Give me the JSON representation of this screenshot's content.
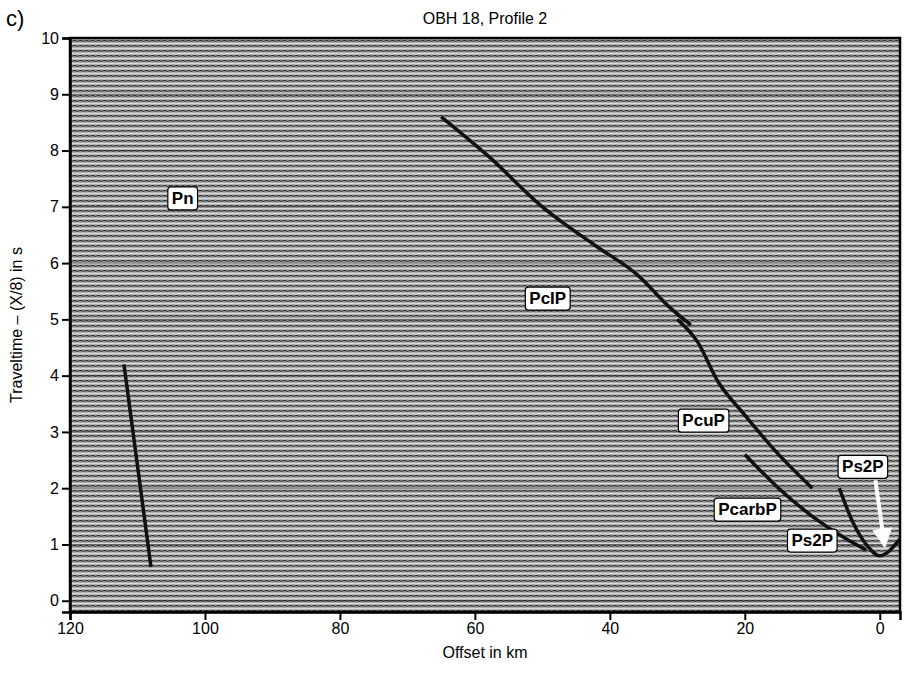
{
  "chart_data": {
    "type": "line",
    "panel": "c)",
    "title": "OBH 18, Profile 2",
    "x_label": "Offset in km",
    "y_label": "Traveltime – (X/8) in s",
    "xlim": [
      120,
      -3
    ],
    "ylim": [
      -0.2,
      10
    ],
    "xticks": [
      120,
      100,
      80,
      60,
      40,
      20,
      0
    ],
    "yticks": [
      0,
      1,
      2,
      3,
      4,
      5,
      6,
      7,
      8,
      9,
      10
    ],
    "grid": true,
    "series": [
      {
        "color": "#111111",
        "x": [
          6,
          4,
          2,
          0,
          -3
        ],
        "values": [
          2.0,
          1.4,
          1.0,
          0.8,
          1.1
        ]
      },
      {
        "color": "#111111",
        "x": [
          20,
          15,
          10,
          5,
          2
        ],
        "values": [
          2.6,
          2.0,
          1.5,
          1.1,
          0.9
        ]
      },
      {
        "color": "#111111",
        "x": [
          30,
          27,
          24,
          20,
          15,
          10
        ],
        "values": [
          5.0,
          4.6,
          3.9,
          3.3,
          2.6,
          2.0
        ]
      },
      {
        "color": "#111111",
        "x": [
          65,
          58,
          50,
          42,
          36,
          31,
          28
        ],
        "values": [
          8.6,
          7.9,
          7.0,
          6.3,
          5.8,
          5.2,
          4.9
        ]
      },
      {
        "color": "#111111",
        "x": [
          112,
          110,
          108
        ],
        "values": [
          4.2,
          2.4,
          0.6
        ]
      }
    ],
    "annotations": [
      {
        "text": "Pn",
        "x": 103.3,
        "y": 7.15
      },
      {
        "text": "PcIP",
        "x": 49.2,
        "y": 5.37
      },
      {
        "text": "PcuP",
        "x": 26.1,
        "y": 3.2
      },
      {
        "text": "Ps2P",
        "x": 2.5,
        "y": 2.38,
        "arrow_to": [
          -0.7,
          1.0
        ]
      },
      {
        "text": "PcarbP",
        "x": 19.6,
        "y": 1.62
      },
      {
        "text": "Ps2P",
        "x": 10,
        "y": 1.07
      }
    ]
  }
}
